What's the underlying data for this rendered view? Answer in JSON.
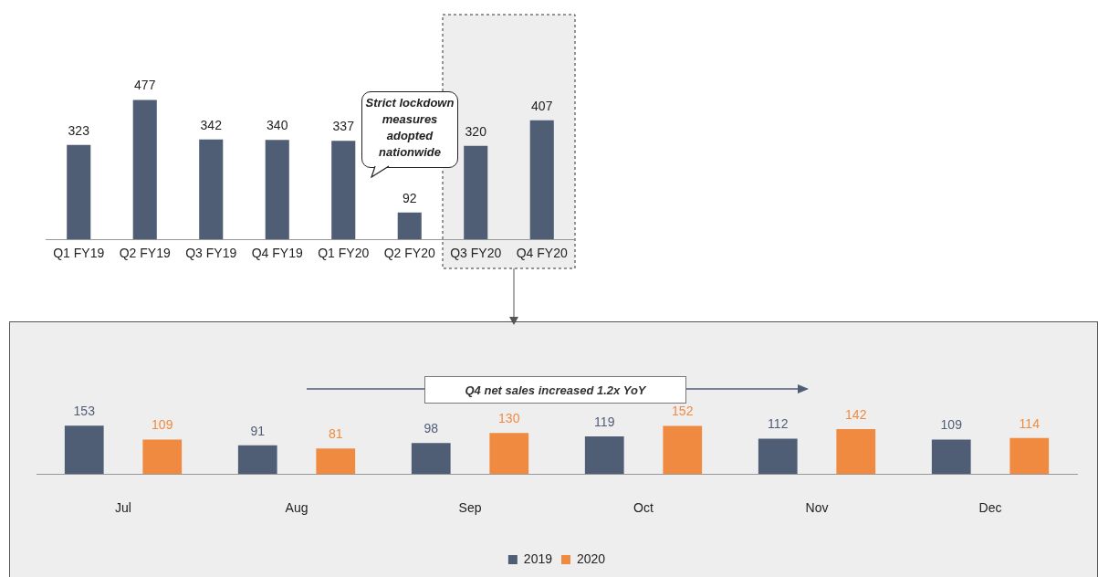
{
  "chart_data": [
    {
      "type": "bar",
      "categories": [
        "Q1 FY19",
        "Q2 FY19",
        "Q3 FY19",
        "Q4 FY19",
        "Q1 FY20",
        "Q2 FY20",
        "Q3 FY20",
        "Q4 FY20"
      ],
      "values": [
        323,
        477,
        342,
        340,
        337,
        92,
        320,
        407
      ],
      "color": "#4f5d75",
      "data_labels": true,
      "grid": false,
      "legend": false,
      "bands": [
        {
          "axis": "x",
          "from": "Q3 FY20",
          "to": "Q4 FY20",
          "color": "#eeeeee"
        }
      ],
      "annotations": [
        "Strict lockdown measures adopted nationwide"
      ]
    },
    {
      "type": "bar",
      "categories": [
        "Jul",
        "Aug",
        "Sep",
        "Oct",
        "Nov",
        "Dec"
      ],
      "series": [
        {
          "name": "2019",
          "color": "#4f5d75",
          "values": [
            153,
            91,
            98,
            119,
            112,
            109
          ]
        },
        {
          "name": "2020",
          "color": "#f08a41",
          "values": [
            109,
            81,
            130,
            152,
            142,
            114
          ]
        }
      ],
      "data_labels": true,
      "grid": false,
      "legend": "bottom",
      "annotations": [
        "Q4 net sales increased 1.2x YoY"
      ]
    }
  ]
}
